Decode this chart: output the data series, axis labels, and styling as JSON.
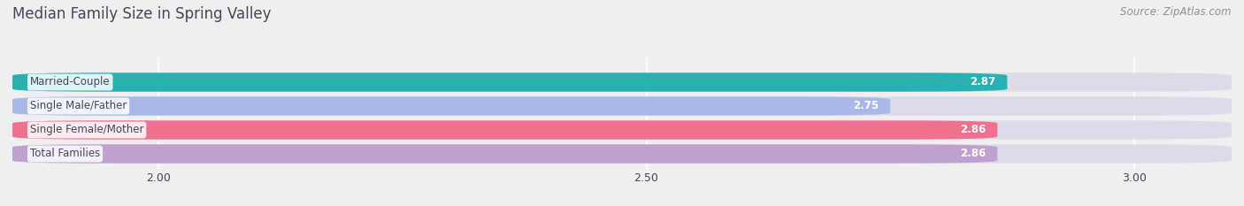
{
  "title": "Median Family Size in Spring Valley",
  "source": "Source: ZipAtlas.com",
  "categories": [
    "Married-Couple",
    "Single Male/Father",
    "Single Female/Mother",
    "Total Families"
  ],
  "values": [
    2.87,
    2.75,
    2.86,
    2.86
  ],
  "bar_colors": [
    "#29b0b0",
    "#aab8e8",
    "#f07090",
    "#c0a0d0"
  ],
  "bar_bg_color": "#dcdce8",
  "xlim": [
    1.85,
    3.1
  ],
  "xticks": [
    2.0,
    2.5,
    3.0
  ],
  "xtick_labels": [
    "2.00",
    "2.50",
    "3.00"
  ],
  "title_color": "#404858",
  "source_color": "#909098",
  "label_color": "#404858",
  "value_color": "#ffffff",
  "title_fontsize": 12,
  "source_fontsize": 8.5,
  "label_fontsize": 8.5,
  "value_fontsize": 8.5,
  "tick_fontsize": 9,
  "background_color": "#efefef"
}
